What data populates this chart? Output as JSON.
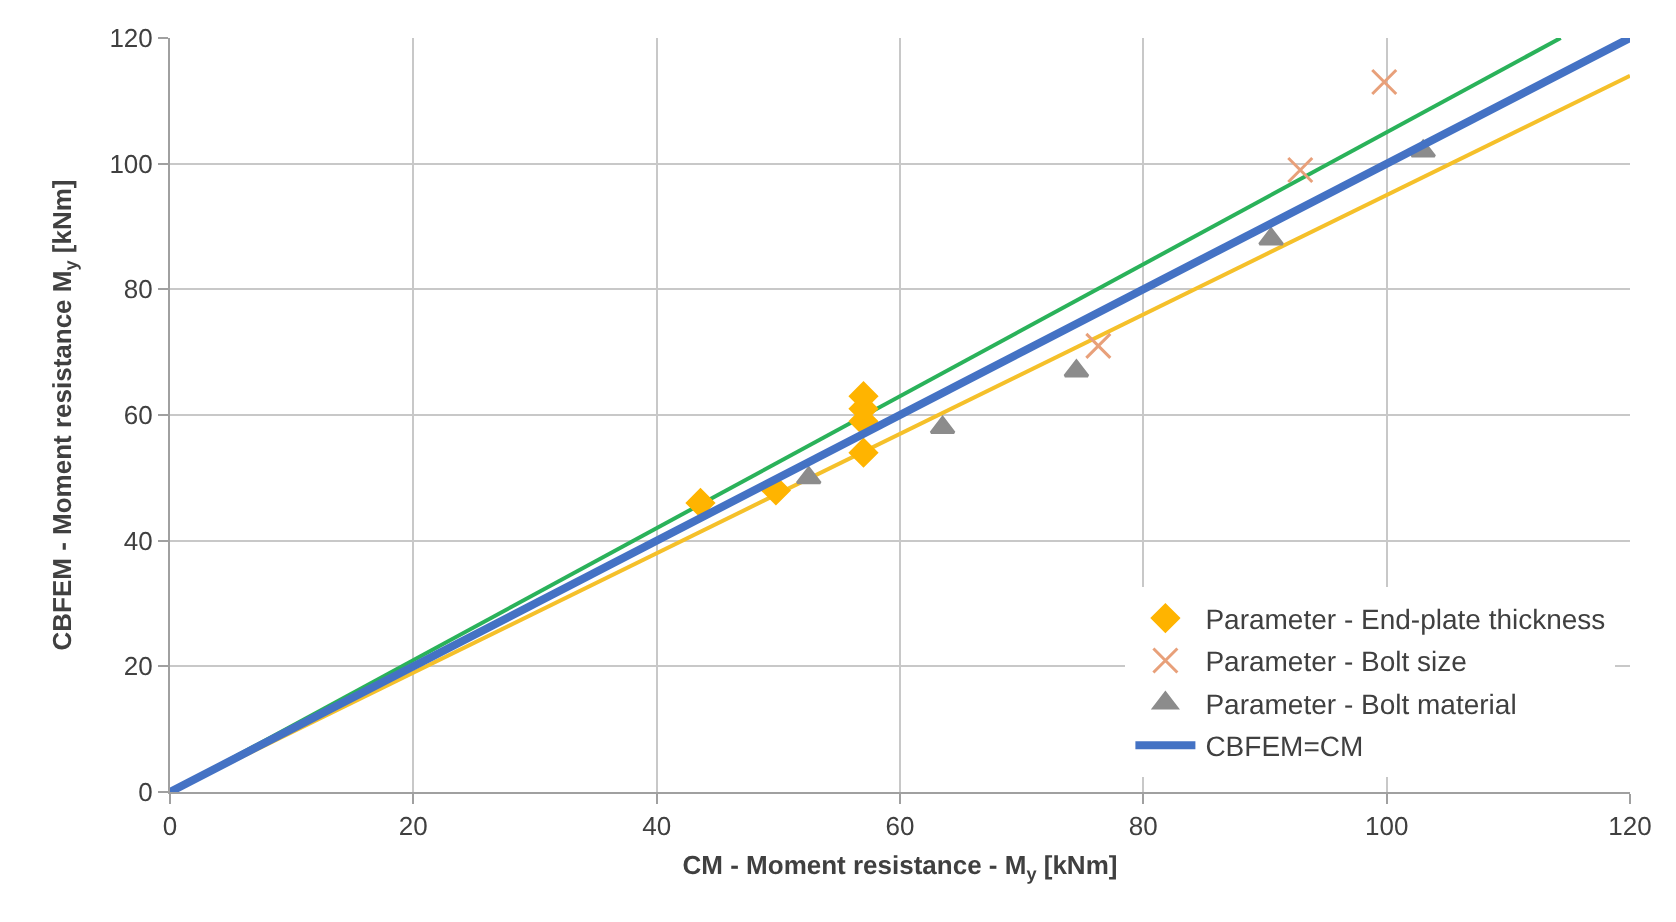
{
  "chart_data": {
    "type": "scatter",
    "xlabel": "CM - Moment resistance - M$_{y}$ [kNm]",
    "ylabel": "CBFEM - Moment resistance M$_{y}$ [kNm]",
    "xlim": [
      0,
      120
    ],
    "ylim": [
      0,
      120
    ],
    "xticks": [
      0,
      20,
      40,
      60,
      80,
      100,
      120
    ],
    "yticks": [
      0,
      20,
      40,
      60,
      80,
      100,
      120
    ],
    "grid": true,
    "legend": "bottom right",
    "series": [
      {
        "type": "line",
        "color": "#2ab25a",
        "x": [
          0,
          114.3
        ],
        "values": [
          0,
          120
        ],
        "marker": "none"
      },
      {
        "type": "line",
        "color": "#f5c02a",
        "x": [
          0,
          120
        ],
        "values": [
          0,
          114
        ],
        "marker": "none"
      },
      {
        "name": "Parameter - End-plate thickness",
        "color": "#ffb400",
        "marker": "diamond",
        "x": [
          43.6,
          49.8,
          57,
          57,
          57,
          57
        ],
        "values": [
          46,
          48,
          54,
          59,
          61,
          63
        ]
      },
      {
        "name": "Parameter - Bolt size",
        "color": "#e8a07a",
        "marker": "cross",
        "x": [
          76.3,
          92.9,
          99.8
        ],
        "values": [
          71,
          99,
          113
        ]
      },
      {
        "name": "Parameter - Bolt material",
        "color": "#8c8c8c",
        "marker": "triangle",
        "x": [
          52.5,
          63.5,
          74.5,
          90.5,
          103
        ],
        "values": [
          50,
          58,
          67,
          88,
          102
        ]
      },
      {
        "name": "CBFEM=CM",
        "type": "line",
        "color": "#4472c4",
        "x": [
          0,
          120
        ],
        "values": [
          0,
          120
        ],
        "marker": "none"
      }
    ]
  }
}
